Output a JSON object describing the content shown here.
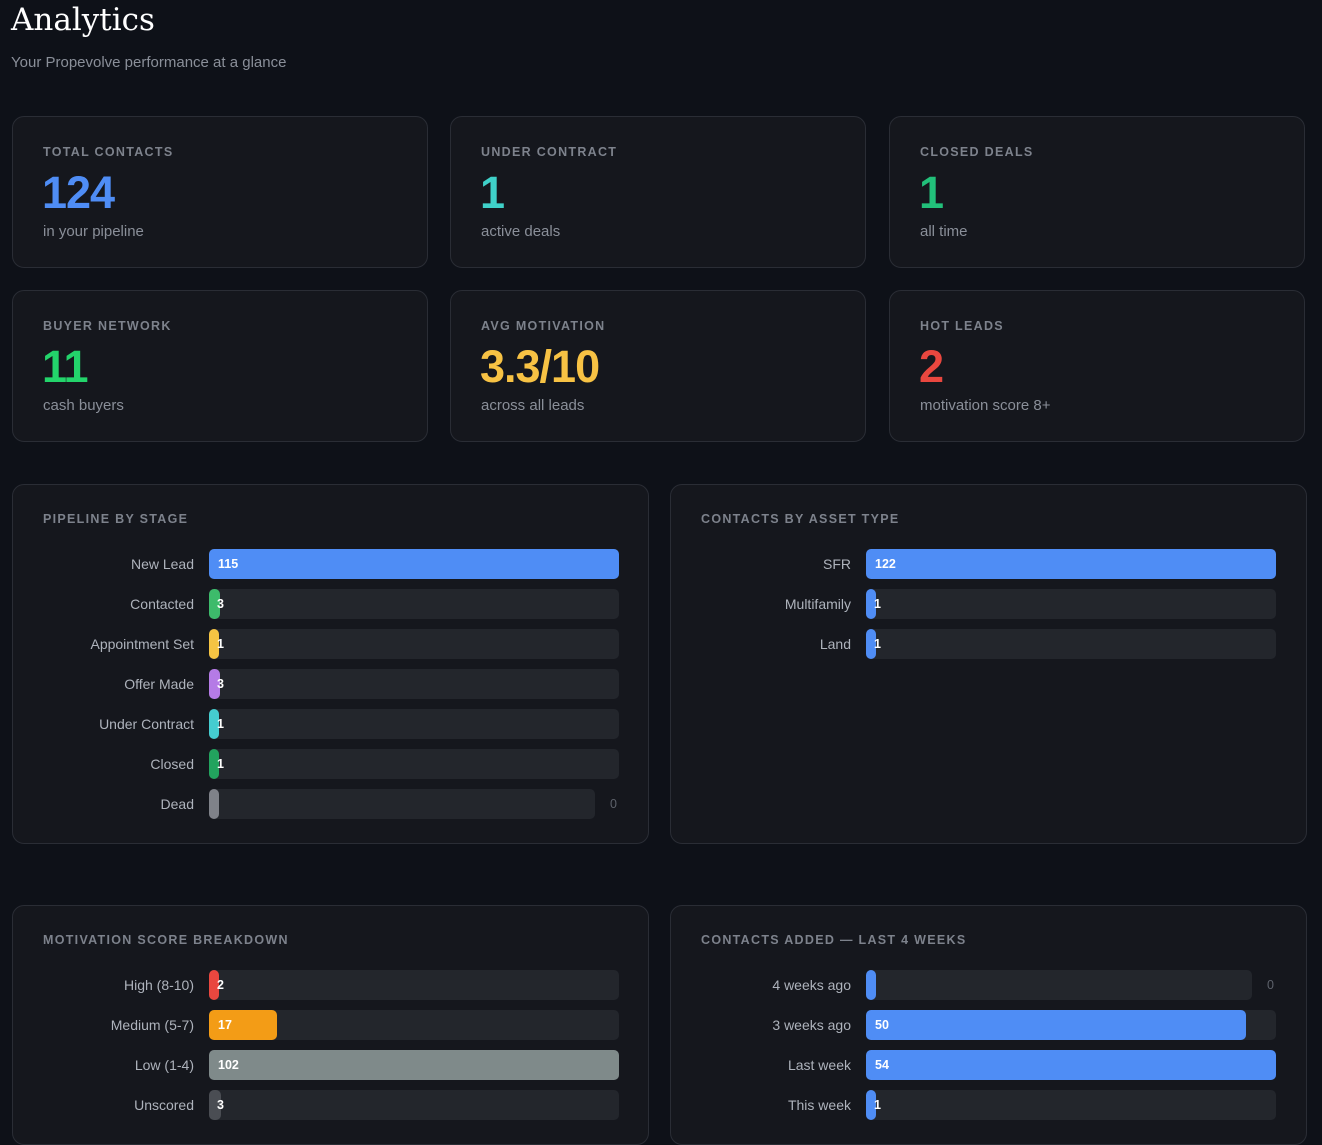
{
  "header": {
    "title": "Analytics",
    "subtitle": "Your Propevolve performance at a glance"
  },
  "stats": [
    {
      "label": "TOTAL CONTACTS",
      "value": "124",
      "sub": "in your pipeline",
      "color": "#4f8df5"
    },
    {
      "label": "UNDER CONTRACT",
      "value": "1",
      "sub": "active deals",
      "color": "#3fd1c9"
    },
    {
      "label": "CLOSED DEALS",
      "value": "1",
      "sub": "all time",
      "color": "#22c07a"
    },
    {
      "label": "BUYER NETWORK",
      "value": "11",
      "sub": "cash buyers",
      "color": "#23d46b"
    },
    {
      "label": "AVG MOTIVATION",
      "value": "3.3/10",
      "sub": "across all leads",
      "color": "#f7c244"
    },
    {
      "label": "HOT LEADS",
      "value": "2",
      "sub": "motivation score 8+",
      "color": "#e9473f"
    }
  ],
  "chart_data": [
    {
      "type": "bar",
      "title": "PIPELINE BY STAGE",
      "categories": [
        "New Lead",
        "Contacted",
        "Appointment Set",
        "Offer Made",
        "Under Contract",
        "Closed",
        "Dead"
      ],
      "values": [
        115,
        3,
        1,
        3,
        1,
        1,
        0
      ],
      "labels": [
        "115",
        "3",
        "1",
        "3",
        "1",
        "1",
        "0"
      ],
      "colors": [
        "#4f8df5",
        "#3dbb6b",
        "#f5c443",
        "#b57be6",
        "#45cdd0",
        "#22a35e",
        "#7f8289"
      ],
      "max": 115
    },
    {
      "type": "bar",
      "title": "CONTACTS BY ASSET TYPE",
      "categories": [
        "SFR",
        "Multifamily",
        "Land"
      ],
      "values": [
        122,
        1,
        1
      ],
      "labels": [
        "122",
        "1",
        "1"
      ],
      "colors": [
        "#4f8df5",
        "#4f8df5",
        "#4f8df5"
      ],
      "max": 122
    },
    {
      "type": "bar",
      "title": "MOTIVATION SCORE BREAKDOWN",
      "categories": [
        "High (8-10)",
        "Medium (5-7)",
        "Low (1-4)",
        "Unscored"
      ],
      "values": [
        2,
        17,
        102,
        3
      ],
      "labels": [
        "2",
        "17",
        "102",
        "3"
      ],
      "colors": [
        "#e9473f",
        "#f39c16",
        "#7f8a8a",
        "#4a4d53"
      ],
      "max": 102
    },
    {
      "type": "bar",
      "title": "CONTACTS ADDED — LAST 4 WEEKS",
      "categories": [
        "4 weeks ago",
        "3 weeks ago",
        "Last week",
        "This week"
      ],
      "values": [
        0,
        50,
        54,
        1
      ],
      "labels": [
        "0",
        "50",
        "54",
        "1"
      ],
      "colors": [
        "#4f8df5",
        "#4f8df5",
        "#4f8df5",
        "#4f8df5"
      ],
      "max": 54
    }
  ]
}
